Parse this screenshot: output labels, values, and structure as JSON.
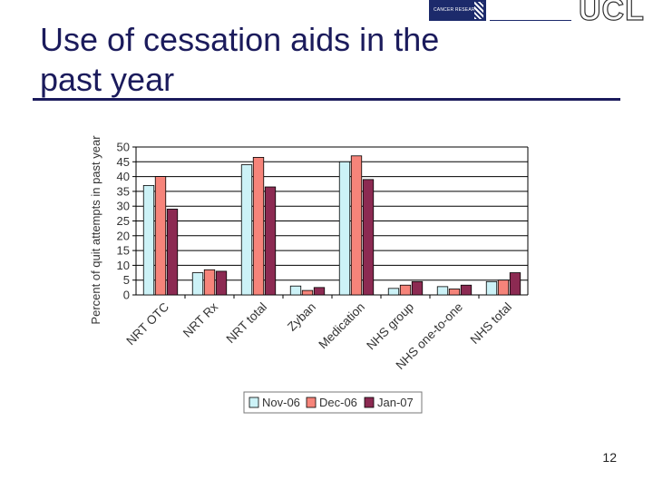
{
  "slide": {
    "title_line1": "Use of cessation aids in the",
    "title_line2": "past year",
    "page_number": "12",
    "logo_cr_text": "CANCER RESEARCH UK",
    "logo_ucl_text": "UCL"
  },
  "colors": {
    "title": "#1b1b5c",
    "series": [
      "#ccf2f7",
      "#f6847a",
      "#8c2a52"
    ]
  },
  "chart_data": {
    "type": "bar",
    "title": "",
    "xlabel": "",
    "ylabel": "Percent of quit attempts in past year",
    "ylim": [
      0,
      50
    ],
    "yticks": [
      "0",
      "5",
      "10",
      "15",
      "20",
      "25",
      "30",
      "35",
      "40",
      "45",
      "50"
    ],
    "grid": true,
    "legend_position": "bottom",
    "categories": [
      "NRT OTC",
      "NRT Rx",
      "NRT total",
      "Zyban",
      "Medication",
      "NHS group",
      "NHS one-to-one",
      "NHS total"
    ],
    "series": [
      {
        "name": "Nov-06",
        "values": [
          37,
          7.5,
          44,
          3,
          45,
          2.2,
          2.8,
          4.5
        ]
      },
      {
        "name": "Dec-06",
        "values": [
          40,
          8.5,
          46.5,
          1.5,
          47,
          3.3,
          2,
          5
        ]
      },
      {
        "name": "Jan-07",
        "values": [
          29,
          8,
          36.5,
          2.5,
          39,
          4.5,
          3.3,
          7.5
        ]
      }
    ]
  }
}
